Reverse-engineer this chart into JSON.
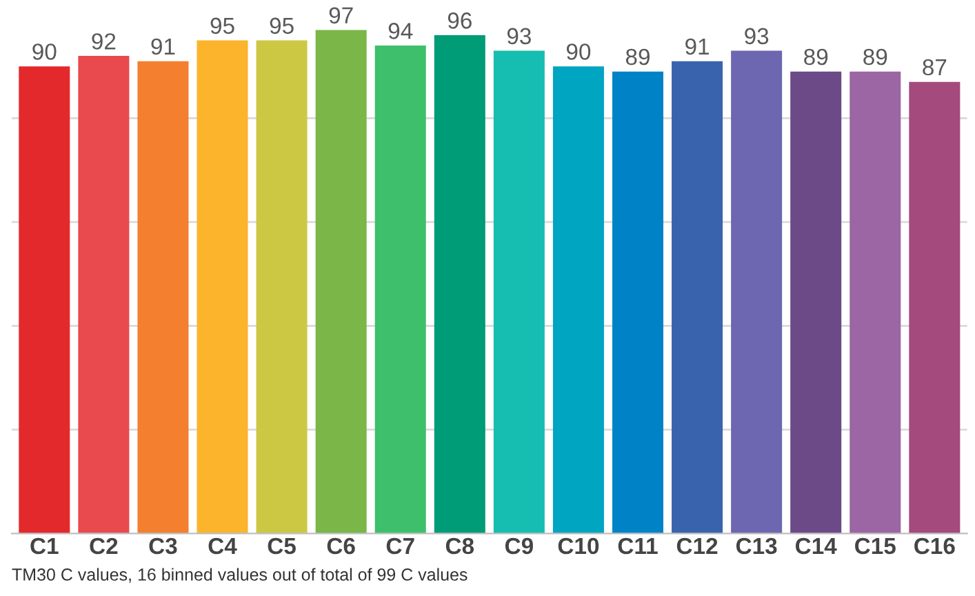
{
  "chart_data": {
    "type": "bar",
    "categories": [
      "C1",
      "C2",
      "C3",
      "C4",
      "C5",
      "C6",
      "C7",
      "C8",
      "C9",
      "C10",
      "C11",
      "C12",
      "C13",
      "C14",
      "C15",
      "C16"
    ],
    "values": [
      90,
      92,
      91,
      95,
      95,
      97,
      94,
      96,
      93,
      90,
      89,
      91,
      93,
      89,
      89,
      87
    ],
    "colors": [
      "#e4292c",
      "#e84a4d",
      "#f47f2e",
      "#fbb42b",
      "#cdc843",
      "#7ab648",
      "#3dbf6b",
      "#009b77",
      "#16bdb1",
      "#00a5c1",
      "#0083c6",
      "#3a63ad",
      "#6c67b0",
      "#6b4a87",
      "#9b66a3",
      "#a44a7c"
    ],
    "yticks": [
      {
        "value": 20,
        "label": null
      },
      {
        "value": 40,
        "label": null
      },
      {
        "value": 60,
        "label": null
      },
      {
        "value": 80,
        "label": null
      }
    ],
    "tick_labels": "x",
    "grid": "y",
    "data_labels": true,
    "annotations": [
      "TM30 C values, 16 binned values out of total of 99 C values"
    ]
  }
}
